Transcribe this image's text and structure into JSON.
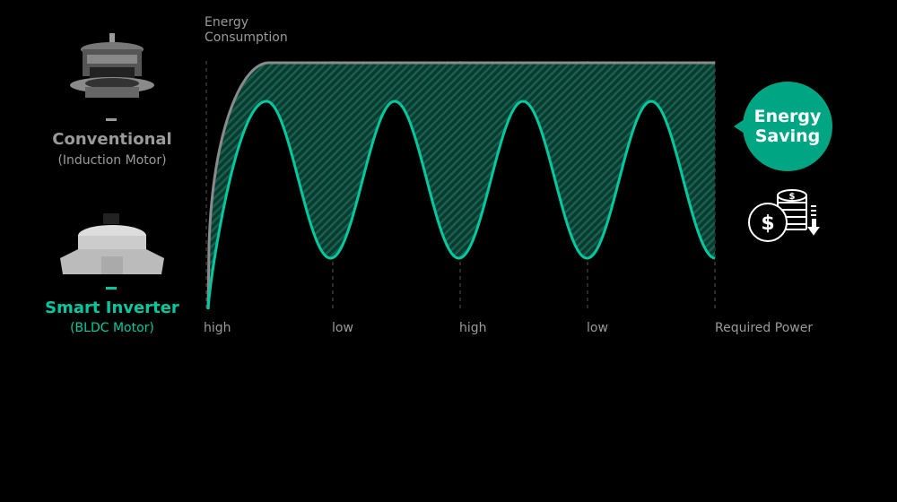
{
  "y_axis_label_line1": "Energy",
  "y_axis_label_line2": "Consumption",
  "x_axis_labels": [
    "high",
    "low",
    "high",
    "low"
  ],
  "x_axis_title": "Required Power",
  "conventional": {
    "title": "Conventional",
    "subtitle": "(Induction Motor)",
    "color": "#9a9a9a"
  },
  "inverter": {
    "title": "Smart Inverter",
    "subtitle": "(BLDC Motor)",
    "color": "#00c9a0"
  },
  "saving": {
    "line1": "Energy",
    "line2": "Saving",
    "color": "#00a584",
    "icon": "coins-dollar-down-icon"
  }
}
